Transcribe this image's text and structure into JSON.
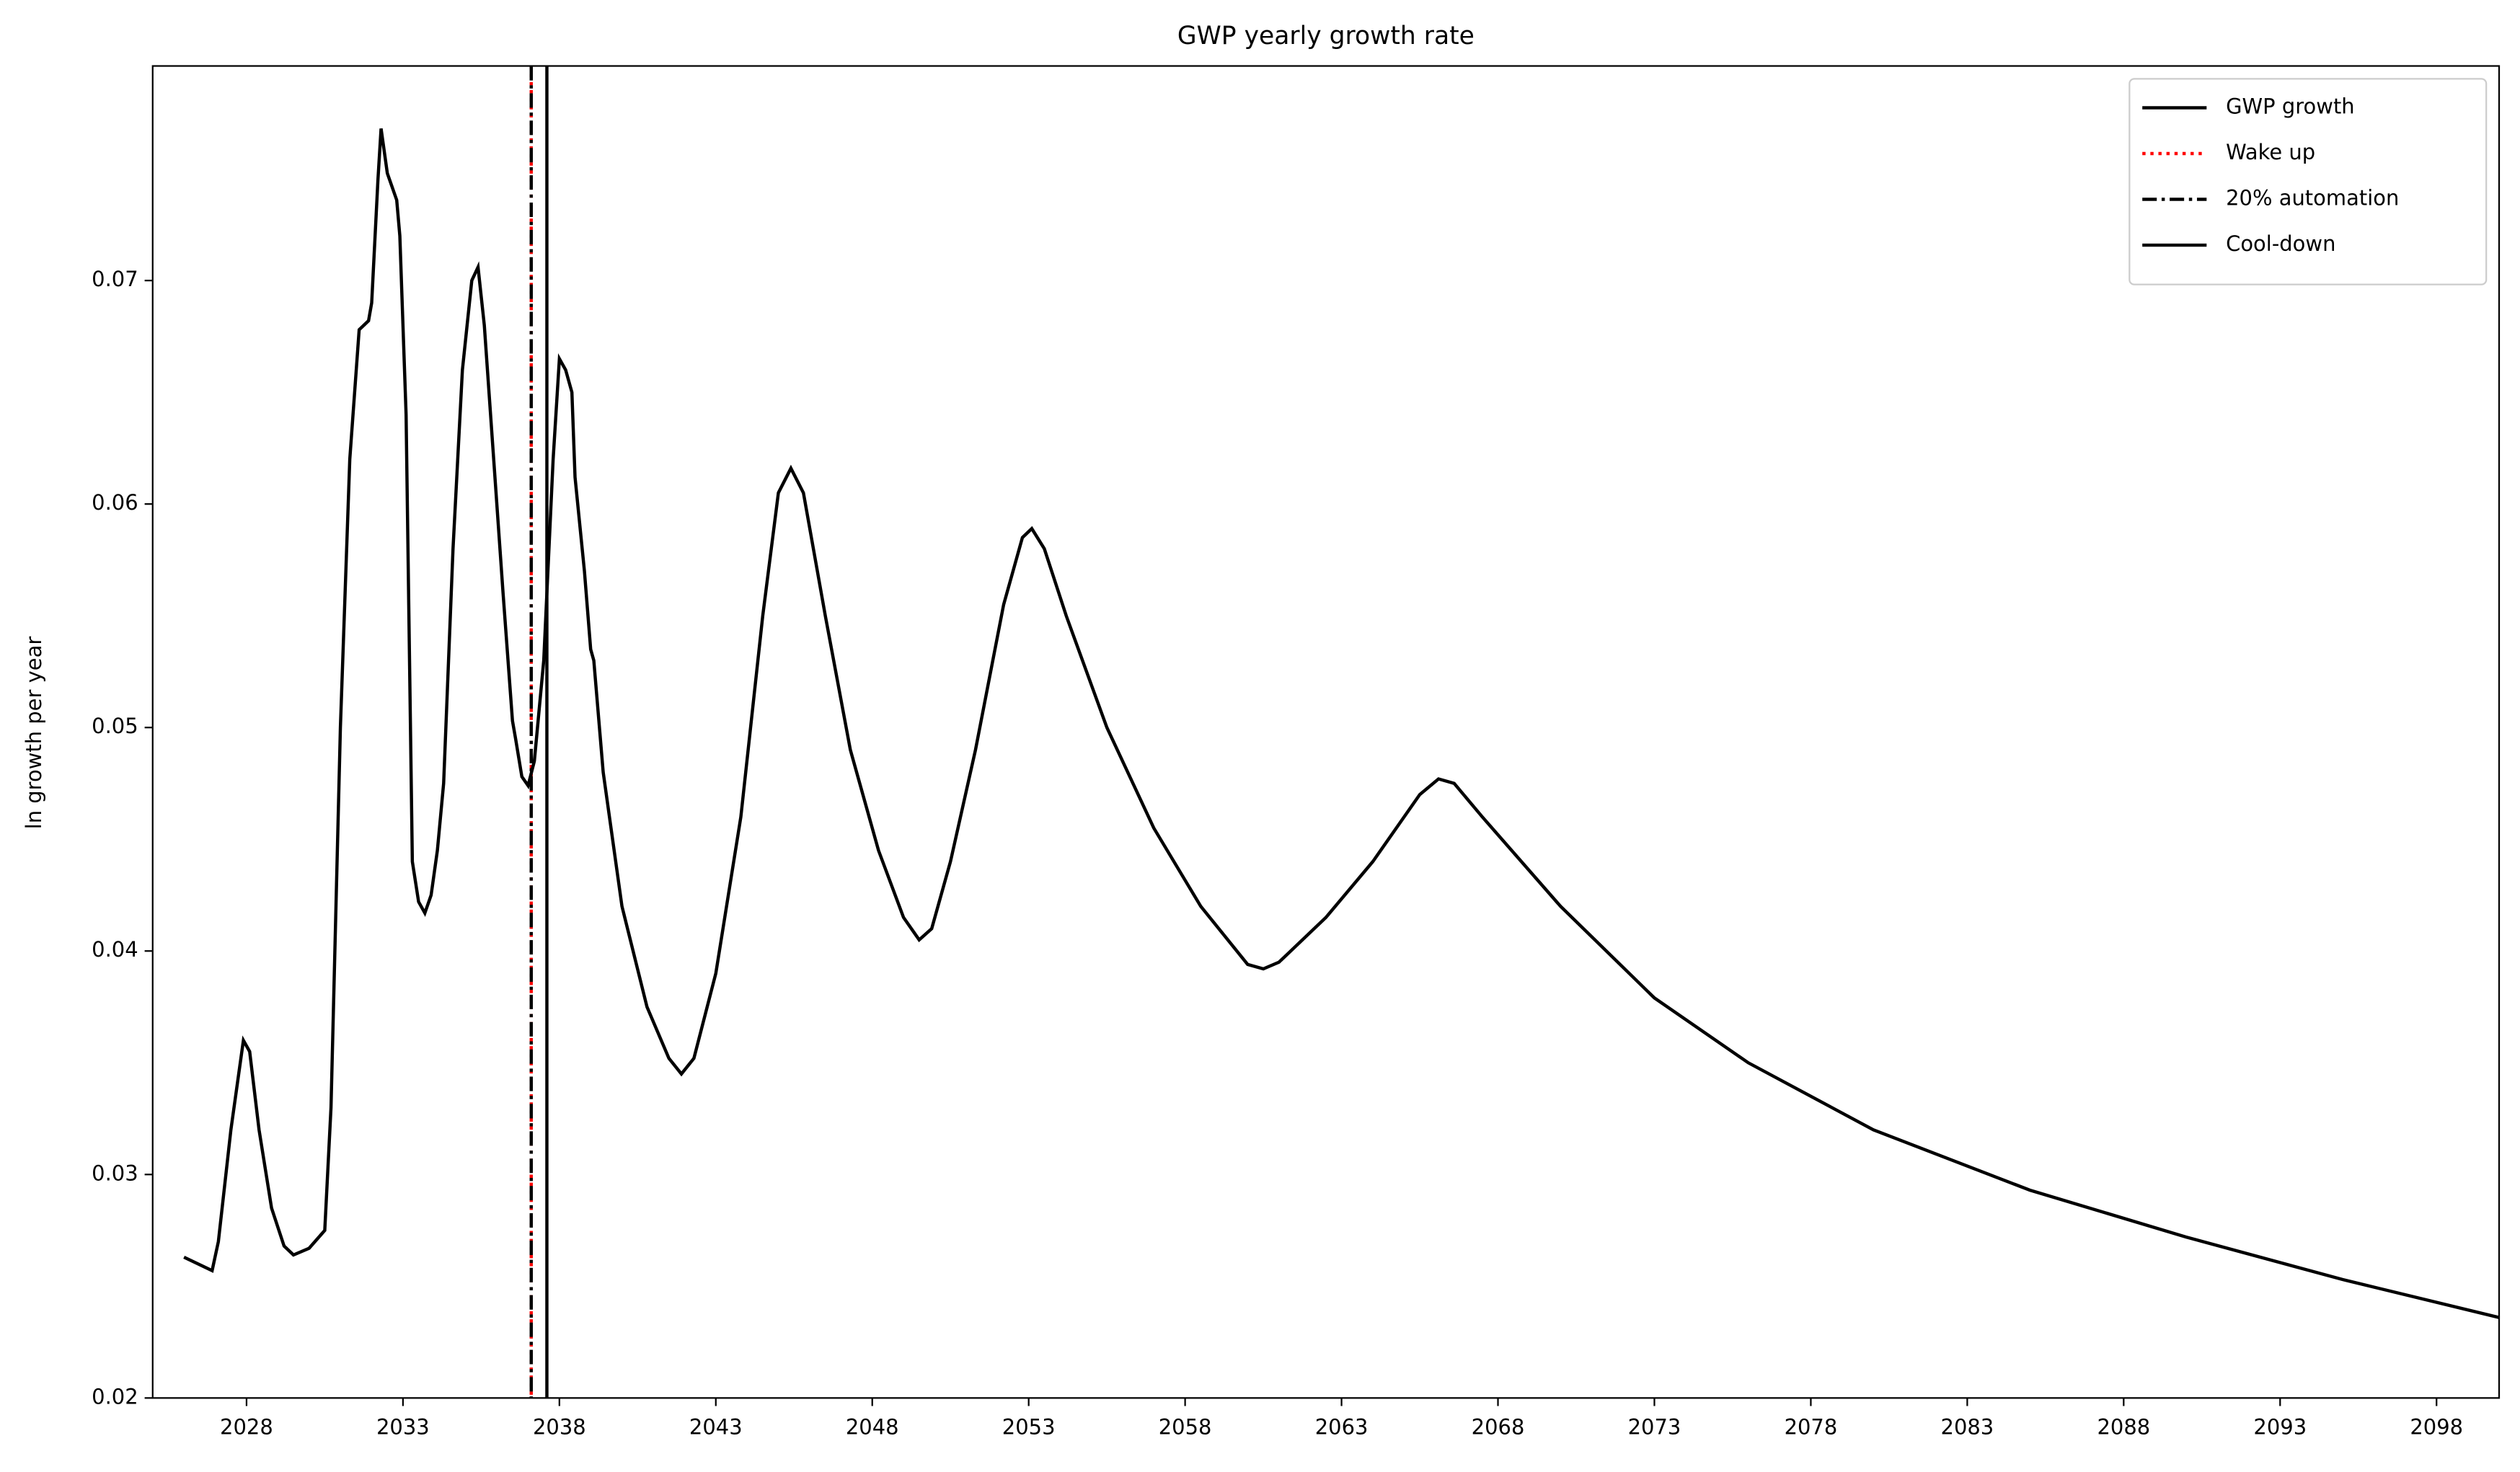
{
  "chart_data": {
    "type": "line",
    "title": "GWP yearly growth rate",
    "y_label": "ln growth per year",
    "x": [
      2026.0,
      2026.9,
      2027.1,
      2027.5,
      2027.9,
      2028.1,
      2028.4,
      2028.8,
      2029.2,
      2029.5,
      2030.0,
      2030.5,
      2030.7,
      2031.0,
      2031.3,
      2031.6,
      2031.9,
      2032.0,
      2032.2,
      2032.3,
      2032.5,
      2032.8,
      2032.9,
      2033.1,
      2033.3,
      2033.5,
      2033.7,
      2033.9,
      2034.1,
      2034.3,
      2034.6,
      2034.9,
      2035.2,
      2035.4,
      2035.6,
      2035.9,
      2036.2,
      2036.5,
      2036.6,
      2036.8,
      2037.0,
      2037.2,
      2037.5,
      2037.8,
      2038.0,
      2038.2,
      2038.4,
      2038.5,
      2038.8,
      2039.0,
      2039.1,
      2039.4,
      2040.0,
      2040.8,
      2041.5,
      2041.9,
      2042.3,
      2043.0,
      2043.8,
      2044.5,
      2045.0,
      2045.4,
      2045.8,
      2046.5,
      2047.3,
      2048.2,
      2049.0,
      2049.5,
      2049.9,
      2050.5,
      2051.3,
      2052.2,
      2052.8,
      2053.1,
      2053.5,
      2054.2,
      2055.5,
      2057.0,
      2058.5,
      2060.0,
      2060.5,
      2061.0,
      2062.5,
      2064.0,
      2065.5,
      2066.1,
      2066.6,
      2067.5,
      2070.0,
      2073.0,
      2076.0,
      2080.0,
      2085.0,
      2090.0,
      2095.0,
      2100.0
    ],
    "series": [
      {
        "name": "GWP growth",
        "color": "#000000",
        "style": "solid",
        "values": [
          0.0263,
          0.0257,
          0.027,
          0.032,
          0.036,
          0.0355,
          0.032,
          0.0285,
          0.0268,
          0.0264,
          0.0267,
          0.0275,
          0.033,
          0.05,
          0.062,
          0.0678,
          0.0682,
          0.069,
          0.0745,
          0.0768,
          0.0748,
          0.0736,
          0.072,
          0.064,
          0.044,
          0.0422,
          0.0417,
          0.0425,
          0.0445,
          0.0475,
          0.058,
          0.066,
          0.07,
          0.0706,
          0.068,
          0.062,
          0.056,
          0.0503,
          0.0495,
          0.0478,
          0.0474,
          0.0485,
          0.053,
          0.062,
          0.0665,
          0.066,
          0.065,
          0.0612,
          0.057,
          0.0535,
          0.053,
          0.048,
          0.042,
          0.0375,
          0.0352,
          0.0345,
          0.0352,
          0.039,
          0.046,
          0.055,
          0.0605,
          0.0616,
          0.0605,
          0.055,
          0.049,
          0.0445,
          0.0415,
          0.0405,
          0.041,
          0.044,
          0.049,
          0.0555,
          0.0585,
          0.0589,
          0.058,
          0.055,
          0.05,
          0.0455,
          0.042,
          0.0394,
          0.0392,
          0.0395,
          0.0415,
          0.044,
          0.047,
          0.0477,
          0.0475,
          0.046,
          0.042,
          0.0379,
          0.035,
          0.032,
          0.0293,
          0.0272,
          0.0253,
          0.0236
        ]
      }
    ],
    "vlines": [
      {
        "name": "Wake up",
        "color": "#ff0000",
        "style": "dotted",
        "x": 2037.1
      },
      {
        "name": "20% automation",
        "color": "#000000",
        "style": "dashdot",
        "x": 2037.1
      },
      {
        "name": "Cool-down",
        "color": "#000000",
        "style": "solid",
        "x": 2037.6
      }
    ],
    "xlim": [
      2025,
      2100
    ],
    "ylim": [
      0.02,
      0.0796
    ],
    "xticks": [
      2028,
      2033,
      2038,
      2043,
      2048,
      2053,
      2058,
      2063,
      2068,
      2073,
      2078,
      2083,
      2088,
      2093,
      2098
    ],
    "yticks": [
      0.02,
      0.03,
      0.04,
      0.05,
      0.06,
      0.07
    ],
    "legend": "upper right"
  }
}
